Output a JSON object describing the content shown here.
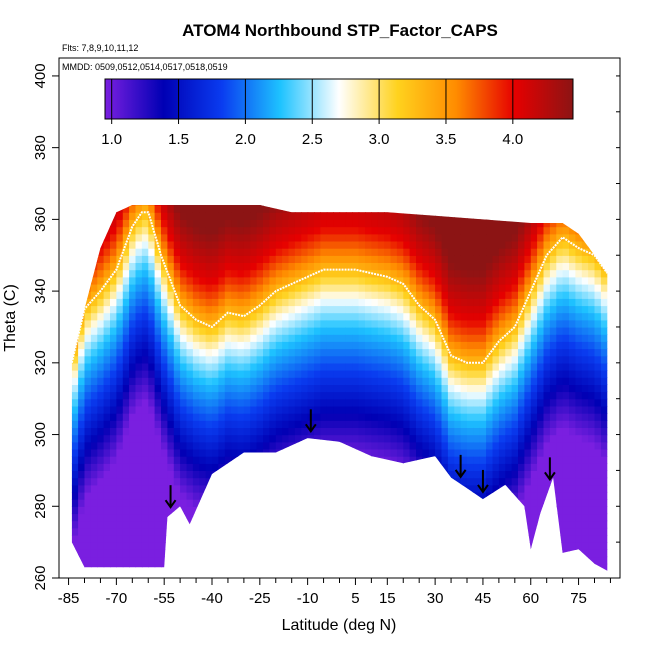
{
  "chart_data": {
    "type": "heatmap",
    "title": "ATOM4 Northbound STP_Factor_CAPS",
    "flights_note": "Flts: 7,8,9,10,11,12",
    "dates_note": "MMDD: 0509,0512,0514,0517,0518,0519",
    "xlabel": "Latitude (deg N)",
    "ylabel": "Theta (C)",
    "xlim": [
      -88,
      88
    ],
    "ylim": [
      260,
      405
    ],
    "xticks": [
      -85,
      -70,
      -55,
      -40,
      -25,
      -10,
      5,
      15,
      30,
      45,
      60,
      75
    ],
    "xtick_labels": [
      "-85",
      "-70",
      "-55",
      "-40",
      "-25",
      "-10",
      "5",
      "15",
      "30",
      "45",
      "60",
      "75"
    ],
    "yticks": [
      260,
      280,
      300,
      320,
      340,
      360,
      380,
      400
    ],
    "ytick_labels": [
      "260",
      "280",
      "300",
      "320",
      "340",
      "360",
      "380",
      "400"
    ],
    "colorbar": {
      "range": [
        0.95,
        4.45
      ],
      "ticks": [
        1.0,
        1.5,
        2.0,
        2.5,
        3.0,
        3.5,
        4.0
      ],
      "tick_labels": [
        "1.0",
        "1.5",
        "2.0",
        "2.5",
        "3.0",
        "3.5",
        "4.0"
      ],
      "colors": [
        "#7a1fe0",
        "#0000b4",
        "#0a3cf0",
        "#1ec3ff",
        "#ffffff",
        "#ffd21e",
        "#ff8c00",
        "#e60000",
        "#8c1414"
      ]
    },
    "field": {
      "lat_range": [
        -84,
        84
      ],
      "bottom_theta": [
        [
          -84,
          270
        ],
        [
          -80,
          263
        ],
        [
          -55,
          263
        ],
        [
          -54,
          277
        ],
        [
          -50,
          280
        ],
        [
          -47,
          275
        ],
        [
          -40,
          289
        ],
        [
          -30,
          295
        ],
        [
          -20,
          295
        ],
        [
          -10,
          299
        ],
        [
          0,
          298
        ],
        [
          10,
          294
        ],
        [
          20,
          292
        ],
        [
          30,
          294
        ],
        [
          35,
          288
        ],
        [
          40,
          285
        ],
        [
          45,
          282
        ],
        [
          52,
          286
        ],
        [
          58,
          280
        ],
        [
          60,
          268
        ],
        [
          63,
          278
        ],
        [
          67,
          288
        ],
        [
          70,
          267
        ],
        [
          75,
          268
        ],
        [
          80,
          264
        ],
        [
          84,
          262
        ]
      ],
      "top_theta": [
        [
          -84,
          320
        ],
        [
          -80,
          335
        ],
        [
          -75,
          352
        ],
        [
          -70,
          362
        ],
        [
          -65,
          364
        ],
        [
          -55,
          364
        ],
        [
          -40,
          364
        ],
        [
          -25,
          364
        ],
        [
          -15,
          362
        ],
        [
          0,
          362
        ],
        [
          15,
          362
        ],
        [
          30,
          361
        ],
        [
          45,
          360
        ],
        [
          60,
          359
        ],
        [
          70,
          359
        ],
        [
          75,
          356
        ],
        [
          80,
          350
        ],
        [
          84,
          345
        ]
      ]
    },
    "tropopause": [
      [
        -84,
        320
      ],
      [
        -80,
        335
      ],
      [
        -75,
        340
      ],
      [
        -70,
        346
      ],
      [
        -65,
        358
      ],
      [
        -62,
        362
      ],
      [
        -60,
        362
      ],
      [
        -56,
        350
      ],
      [
        -50,
        336
      ],
      [
        -45,
        332
      ],
      [
        -40,
        330
      ],
      [
        -35,
        334
      ],
      [
        -30,
        333
      ],
      [
        -25,
        336
      ],
      [
        -20,
        340
      ],
      [
        -15,
        342
      ],
      [
        -10,
        344
      ],
      [
        -5,
        346
      ],
      [
        0,
        346
      ],
      [
        5,
        346
      ],
      [
        10,
        345
      ],
      [
        15,
        344
      ],
      [
        20,
        342
      ],
      [
        25,
        336
      ],
      [
        30,
        332
      ],
      [
        35,
        322
      ],
      [
        40,
        320
      ],
      [
        45,
        320
      ],
      [
        50,
        326
      ],
      [
        55,
        330
      ],
      [
        60,
        340
      ],
      [
        65,
        350
      ],
      [
        70,
        355
      ],
      [
        75,
        352
      ],
      [
        80,
        350
      ],
      [
        84,
        345
      ]
    ],
    "arrows_lat": [
      -53,
      -9,
      38,
      45,
      66
    ]
  }
}
